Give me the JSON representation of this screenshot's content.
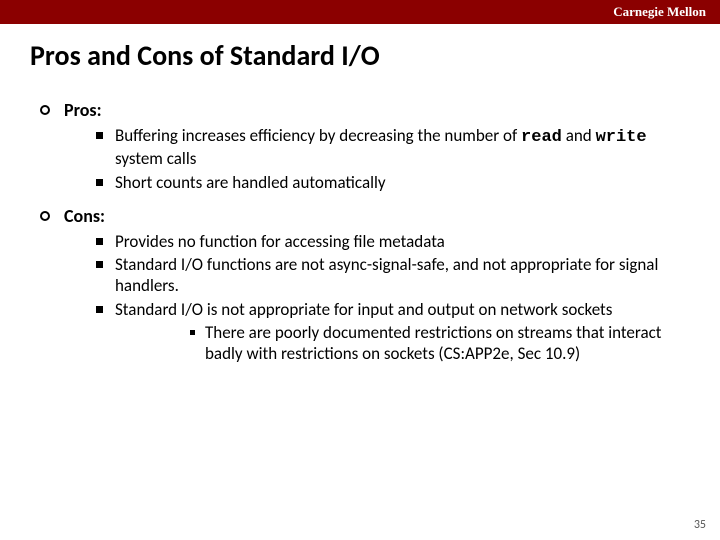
{
  "header": {
    "bar_color": "#8b0000",
    "university": "Carnegie Mellon",
    "university_color": "#ffffff"
  },
  "title": {
    "text": "Pros and Cons of Standard I/O",
    "fontsize": 28,
    "color": "#000000"
  },
  "body_fontsize": 18,
  "sub_fontsize": 17,
  "sections": {
    "pros": {
      "label": "Pros:",
      "items": {
        "0": {
          "pre": "Buffering increases efficiency by decreasing the number of ",
          "code1": "read",
          "mid": " and ",
          "code2": "write",
          "post": " system calls"
        },
        "1": {
          "text": "Short counts are handled automatically"
        }
      }
    },
    "cons": {
      "label": "Cons:",
      "items": {
        "0": {
          "text": "Provides no function for accessing file metadata"
        },
        "1": {
          "text": "Standard I/O functions are not async-signal-safe, and not appropriate for signal handlers."
        },
        "2": {
          "text": "Standard I/O is not appropriate for input and output on network sockets",
          "sub": {
            "0": {
              "text": "There are poorly documented restrictions on streams that interact badly with restrictions on sockets (CS:APP2e, Sec 10.9)"
            }
          }
        }
      }
    }
  },
  "page_number": "35",
  "page_number_fontsize": 12,
  "page_number_color": "#595959"
}
